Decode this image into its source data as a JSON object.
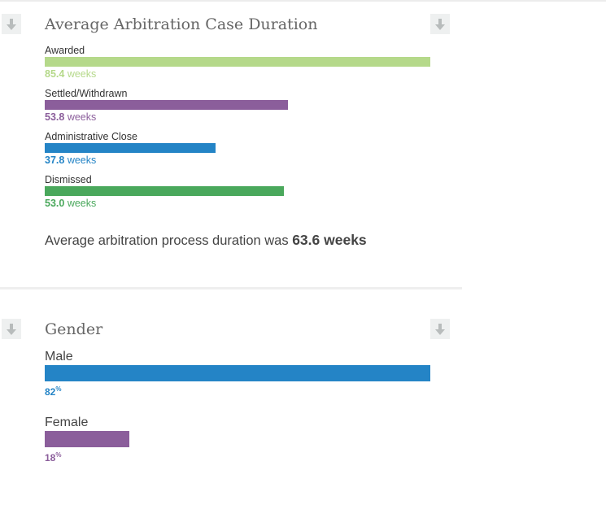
{
  "chart_data": [
    {
      "type": "bar",
      "orientation": "horizontal",
      "title": "Average Arbitration Case Duration",
      "categories": [
        "Awarded",
        "Settled/Withdrawn",
        "Administrative Close",
        "Dismissed"
      ],
      "values": [
        85.4,
        53.8,
        37.8,
        53.0
      ],
      "value_labels": [
        "85.4",
        "53.8",
        "37.8",
        "53.0"
      ],
      "unit": "weeks",
      "colors": [
        "#b5d98a",
        "#8b5e9b",
        "#2484c6",
        "#4aa85c"
      ],
      "summary_prefix": "Average arbitration process duration was ",
      "summary_value": "63.6 weeks"
    },
    {
      "type": "bar",
      "orientation": "horizontal",
      "title": "Gender",
      "categories": [
        "Male",
        "Female"
      ],
      "values": [
        82,
        18
      ],
      "value_labels": [
        "82",
        "18"
      ],
      "unit": "%",
      "colors": [
        "#2484c6",
        "#8b5e9b"
      ]
    }
  ],
  "icons": {
    "download": "download-arrow-icon"
  }
}
